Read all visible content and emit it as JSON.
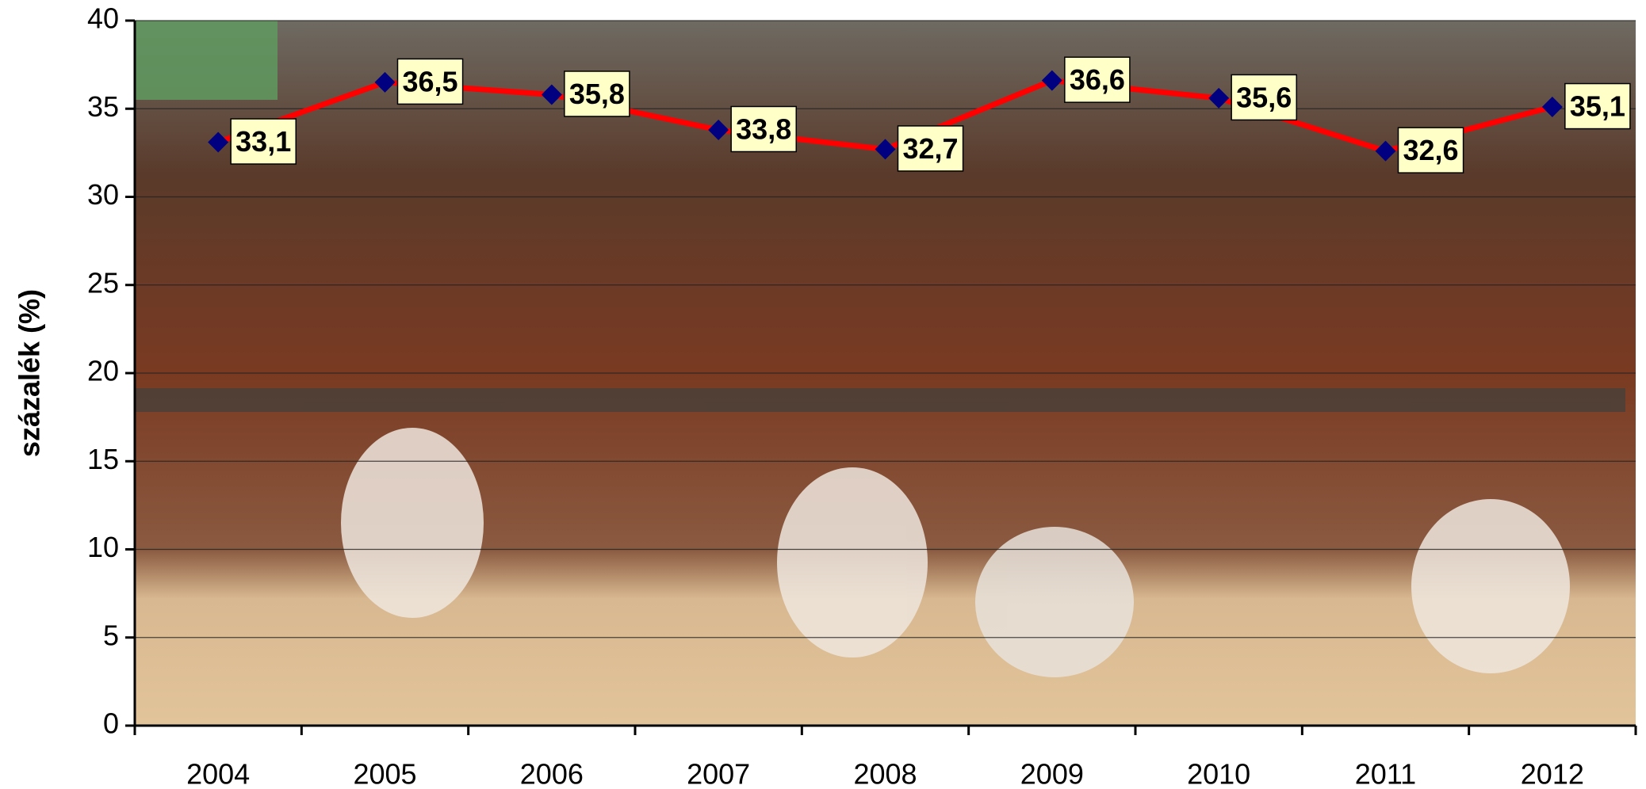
{
  "chart_data": {
    "type": "line",
    "y_label": "százalék (%)",
    "categories": [
      "2004",
      "2005",
      "2006",
      "2007",
      "2008",
      "2009",
      "2010",
      "2011",
      "2012"
    ],
    "series": [
      {
        "color": "#ff0000",
        "marker_color": "#000080",
        "values": [
          33.1,
          36.5,
          35.8,
          33.8,
          32.7,
          36.6,
          35.6,
          32.6,
          35.1
        ],
        "value_labels": [
          "33,1",
          "36,5",
          "35,8",
          "33,8",
          "32,7",
          "36,6",
          "35,6",
          "32,6",
          "35,1"
        ]
      }
    ],
    "ylim": [
      0,
      40
    ],
    "yticks": [
      0,
      5,
      10,
      15,
      20,
      25,
      30,
      35,
      40
    ],
    "grid": true
  }
}
